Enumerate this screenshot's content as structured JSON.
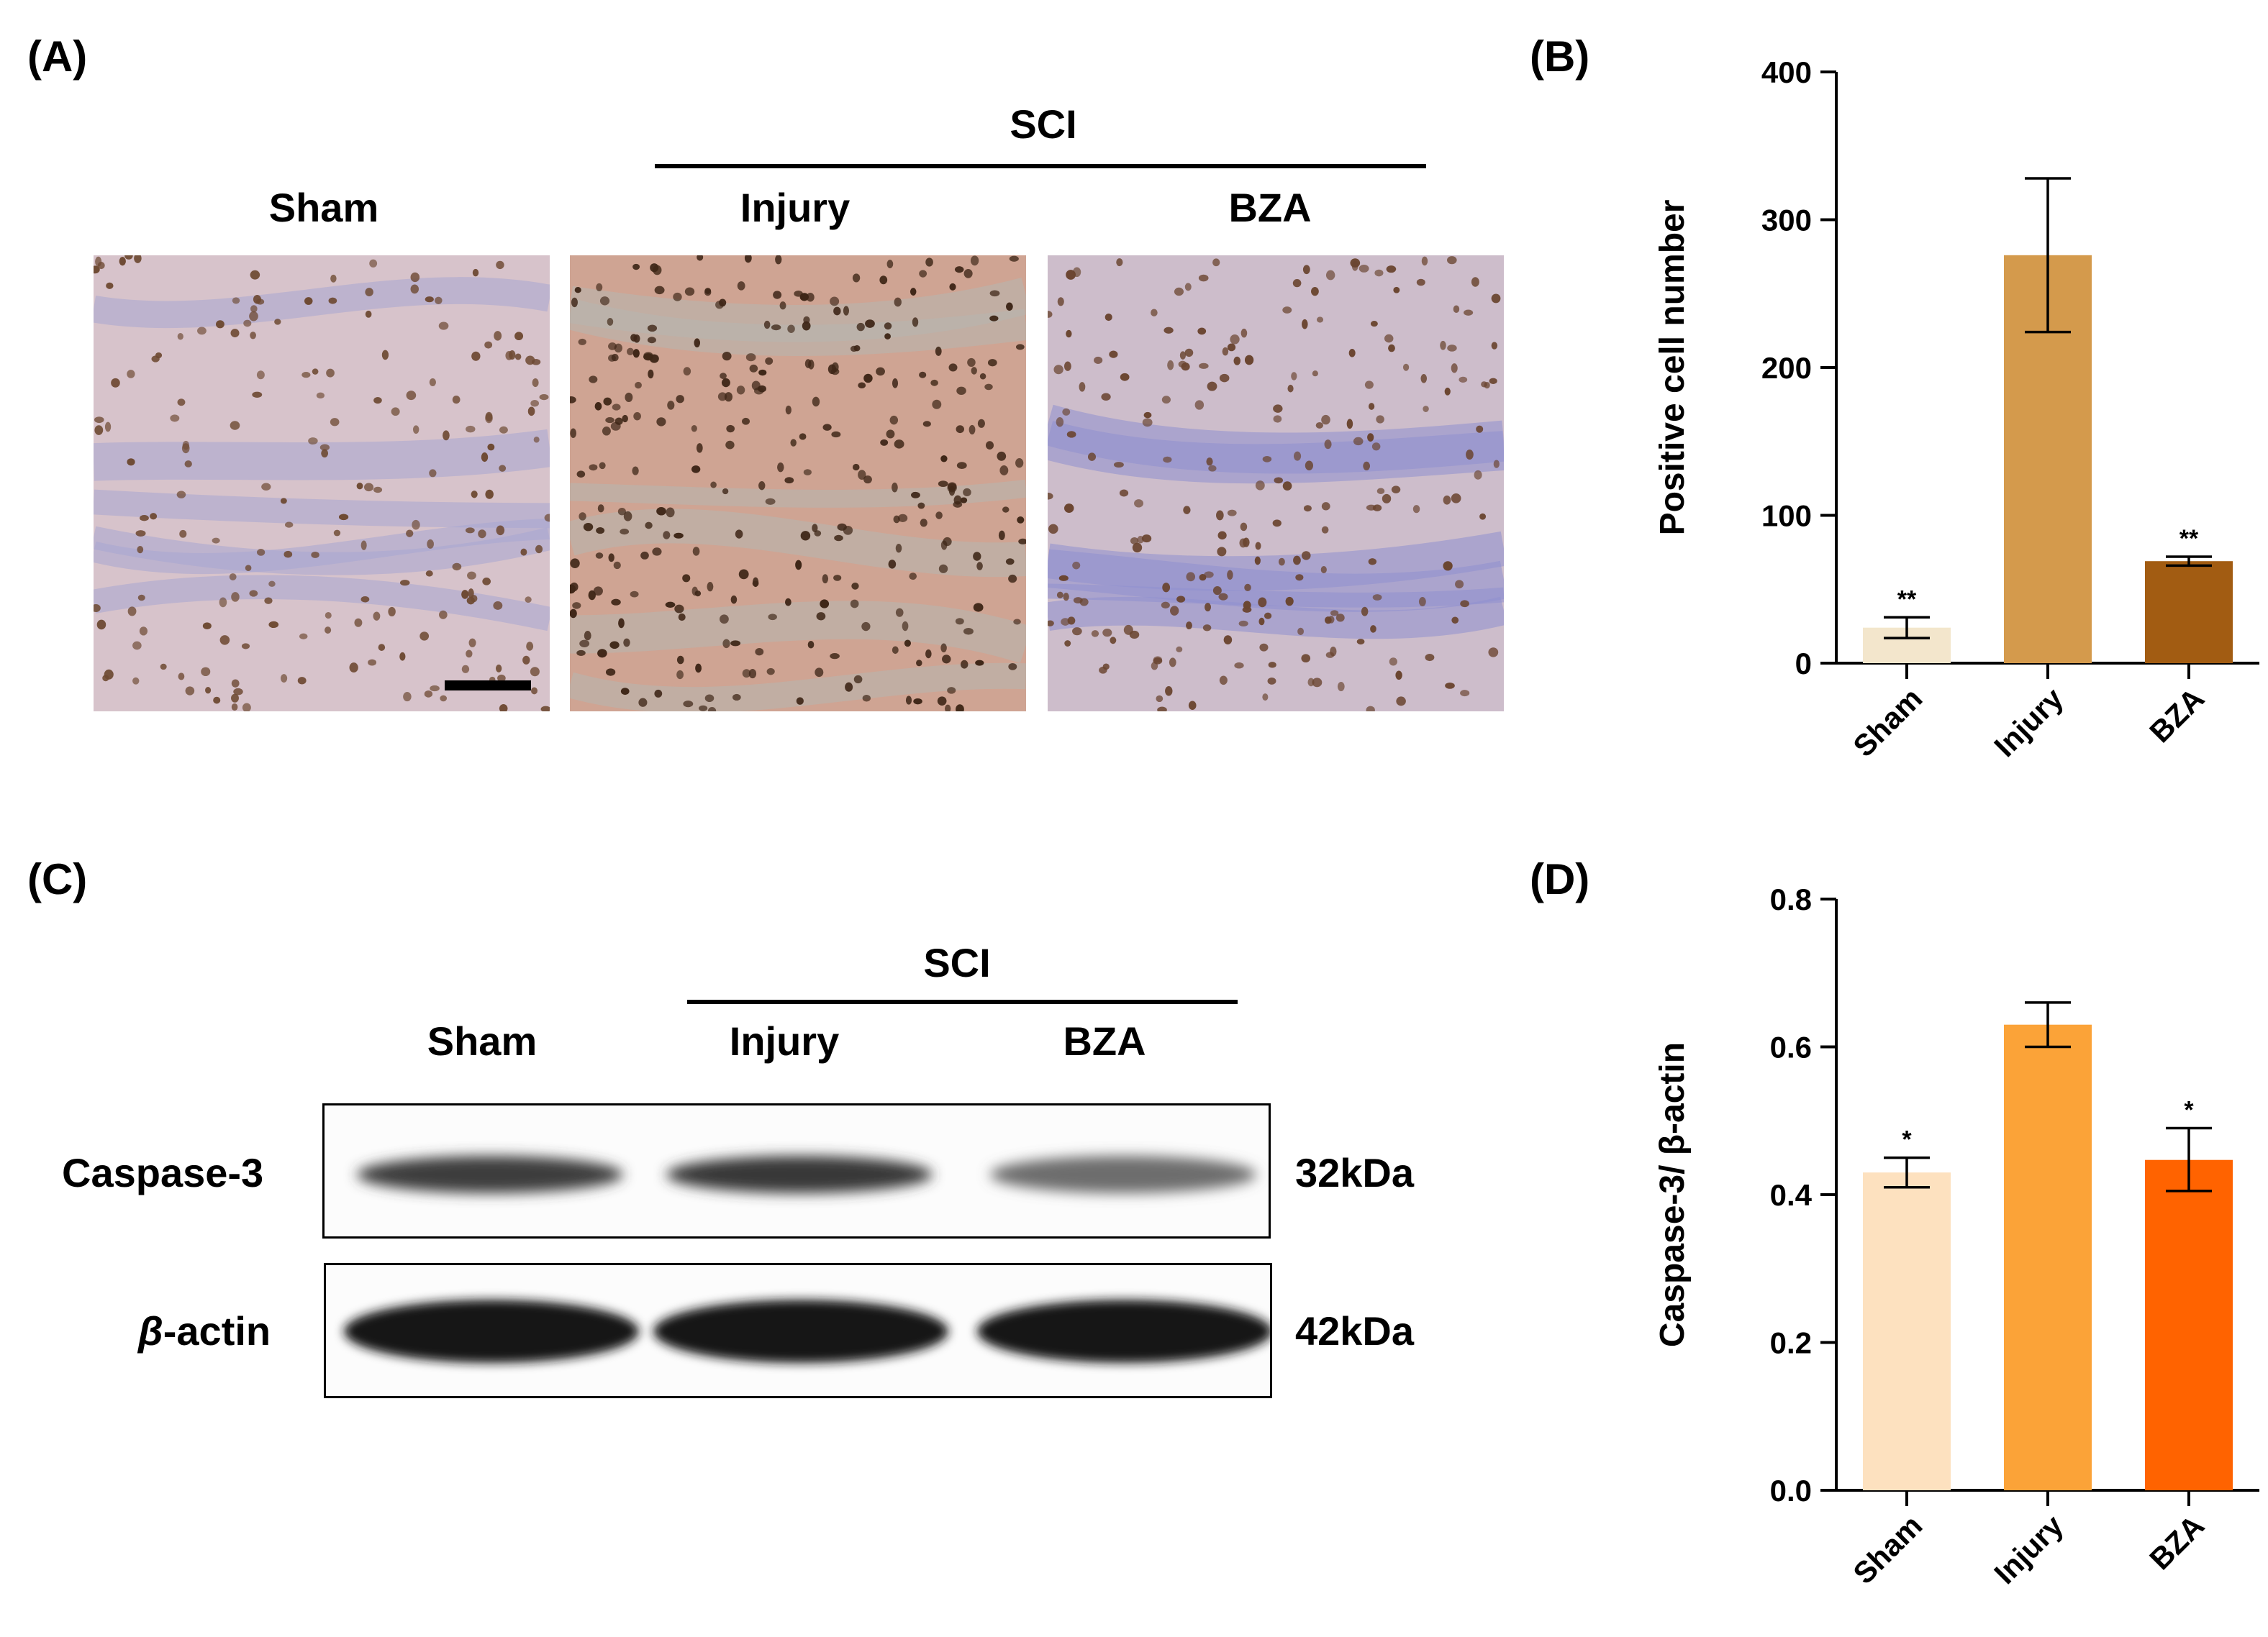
{
  "panels": {
    "a": {
      "label": "(A)",
      "group_label": "SCI",
      "groups": [
        "Sham",
        "Injury",
        "BZA"
      ]
    },
    "b": {
      "label": "(B)"
    },
    "c": {
      "label": "(C)",
      "group_label": "SCI",
      "groups": [
        "Sham",
        "Injury",
        "BZA"
      ],
      "rows": [
        {
          "label": "Caspase-3",
          "size": "32kDa",
          "intensity": [
            0.82,
            0.85,
            0.62
          ]
        },
        {
          "label_italic": "β",
          "label_rest": "-actin",
          "size": "42kDa",
          "intensity": [
            1.0,
            1.0,
            1.0
          ]
        }
      ]
    },
    "d": {
      "label": "(D)"
    }
  },
  "chart_data": [
    {
      "type": "bar",
      "panel": "B",
      "categories": [
        "Sham",
        "Injury",
        "BZA"
      ],
      "values": [
        24,
        276,
        69
      ],
      "errors": [
        [
          17,
          31
        ],
        [
          224,
          328
        ],
        [
          66,
          72
        ]
      ],
      "significance": [
        "**",
        "",
        "**"
      ],
      "colors": [
        "#f3e6cc",
        "#d49a4c",
        "#a25c12"
      ],
      "ylabel": "Positive cell number",
      "ylim": [
        0,
        400
      ],
      "yticks": [
        0,
        100,
        200,
        300,
        400
      ]
    },
    {
      "type": "bar",
      "panel": "D",
      "categories": [
        "Sham",
        "Injury",
        "BZA"
      ],
      "values": [
        0.43,
        0.63,
        0.447
      ],
      "errors": [
        [
          0.41,
          0.45
        ],
        [
          0.6,
          0.66
        ],
        [
          0.405,
          0.49
        ]
      ],
      "significance": [
        "*",
        "",
        "*"
      ],
      "colors": [
        "#fde1bf",
        "#fba338",
        "#ff6300"
      ],
      "ylabel": "Caspase-3/ β-actin",
      "ylim": [
        0,
        0.8
      ],
      "yticks": [
        "0.0",
        "0.2",
        "0.4",
        "0.6",
        "0.8"
      ]
    }
  ]
}
